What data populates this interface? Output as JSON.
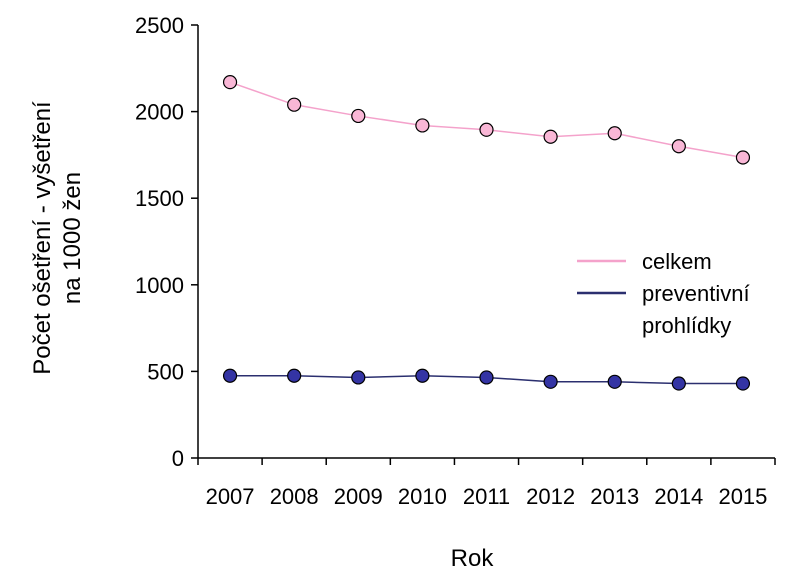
{
  "chart_data": {
    "type": "line",
    "title": "",
    "xlabel": "Rok",
    "ylabel_lines": [
      "Počet ošetření - vyšetření",
      "na 1000 žen"
    ],
    "categories": [
      "2007",
      "2008",
      "2009",
      "2010",
      "2011",
      "2012",
      "2013",
      "2014",
      "2015"
    ],
    "ylim": [
      0,
      2500
    ],
    "yticks": [
      0,
      500,
      1000,
      1500,
      2000,
      2500
    ],
    "grid": false,
    "legend_position": "right",
    "series": [
      {
        "name": "celkem",
        "legend_lines": [
          "celkem"
        ],
        "line_color": "#f4a2cb",
        "marker_fill": "#f9b7d6",
        "values": [
          2170,
          2040,
          1975,
          1920,
          1895,
          1855,
          1875,
          1800,
          1735
        ]
      },
      {
        "name": "preventivní prohlídky",
        "legend_lines": [
          "preventivní",
          "prohlídky"
        ],
        "line_color": "#2b2f6f",
        "marker_fill": "#3434a4",
        "values": [
          475,
          475,
          465,
          475,
          465,
          440,
          440,
          430,
          430
        ]
      }
    ]
  }
}
